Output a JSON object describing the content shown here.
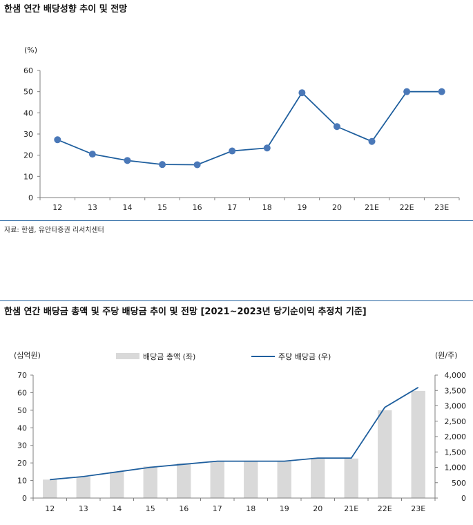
{
  "chart1": {
    "title": "한샘 연간 배당성향 추이 및 전망",
    "unit": "(%)",
    "source": "자료: 한샘, 유안타증권 리서치센터"
  },
  "chart2": {
    "title": "한샘 연간 배당금 총액 및 주당 배당금 추이 및 전망 [2021~2023년 당기순이익 추정치 기준]",
    "left_unit": "(십억원)",
    "right_unit": "(원/주)",
    "legend_bar": "배당금 총액 (좌)",
    "legend_line": "주당 배당금 (우)"
  },
  "colors": {
    "line": "#1f5f9e",
    "marker": "#4a78b8",
    "bar": "#d9d9d9",
    "rule": "#1f5f9e"
  },
  "chart_data": [
    {
      "type": "line",
      "categories": [
        "12",
        "13",
        "14",
        "15",
        "16",
        "17",
        "18",
        "19",
        "20",
        "21E",
        "22E",
        "23E"
      ],
      "values": [
        27.3,
        20.5,
        17.5,
        15.6,
        15.5,
        22.0,
        23.4,
        49.5,
        33.5,
        26.5,
        50.0,
        50.0
      ],
      "ylim": [
        0,
        60
      ],
      "yticks": [
        0,
        10,
        20,
        30,
        40,
        50,
        60
      ],
      "grid": false
    },
    {
      "type": "bar",
      "categories": [
        "12",
        "13",
        "14",
        "15",
        "16",
        "17",
        "18",
        "19",
        "20",
        "21E",
        "22E",
        "23E"
      ],
      "series": [
        {
          "name": "배당금 총액 (좌)",
          "type": "bar",
          "axis": "left",
          "values": [
            10.5,
            12,
            15,
            18,
            19.8,
            21,
            21,
            20.8,
            22.9,
            22.5,
            50,
            61
          ]
        },
        {
          "name": "주당 배당금 (우)",
          "type": "line",
          "axis": "right",
          "values": [
            600,
            700,
            850,
            1000,
            1100,
            1200,
            1200,
            1200,
            1300,
            1300,
            2950,
            3600
          ]
        }
      ],
      "ylim": [
        0,
        70
      ],
      "yticks": [
        0,
        10,
        20,
        30,
        40,
        50,
        60,
        70
      ],
      "y2lim": [
        0,
        4000
      ],
      "y2ticks": [
        "0",
        "500",
        "1,000",
        "1,500",
        "2,000",
        "2,500",
        "3,000",
        "3,500",
        "4,000"
      ],
      "legend": "top",
      "grid": false
    }
  ]
}
